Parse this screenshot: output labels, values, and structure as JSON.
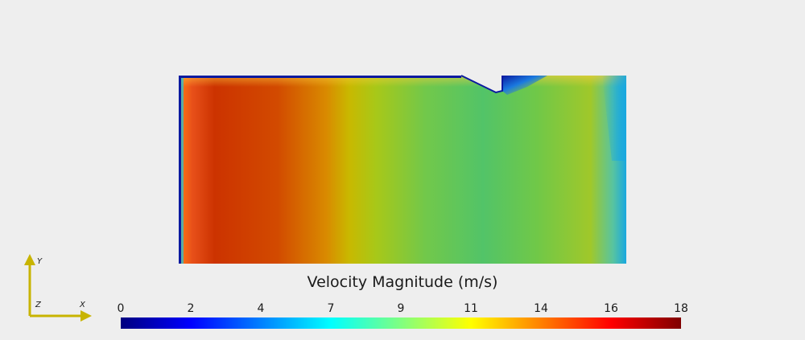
{
  "scalar_bar": {
    "title": "Velocity Magnitude (m/s)",
    "ticks": [
      "0",
      "2",
      "4",
      "7",
      "9",
      "11",
      "14",
      "16",
      "18"
    ],
    "colors": [
      "#00007f",
      "#0000ff",
      "#0080ff",
      "#00ffff",
      "#80ff80",
      "#ffff00",
      "#ff8000",
      "#ff0000",
      "#7f0000"
    ]
  },
  "orientation_axes": {
    "x": "X",
    "y": "Y",
    "z": "Z",
    "color": "#c8b400"
  },
  "field_colors": {
    "hot": "#cc3300",
    "warm": "#d98a00",
    "mid": "#a8c818",
    "cool": "#52c468",
    "edge": "#0a1aa0",
    "cyan": "#19a8e0"
  }
}
